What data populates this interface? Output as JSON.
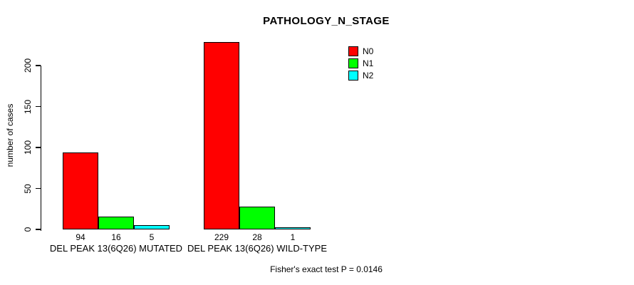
{
  "chart_data": {
    "type": "bar",
    "title": "PATHOLOGY_N_STAGE",
    "xlabel": "",
    "ylabel": "number of cases",
    "yticks": [
      0,
      50,
      100,
      150,
      200
    ],
    "ylim": [
      0,
      232
    ],
    "grid": false,
    "legend_position": "top-right",
    "categories": [
      "DEL PEAK 13(6Q26) MUTATED",
      "DEL PEAK 13(6Q26) WILD-TYPE"
    ],
    "series": [
      {
        "name": "N0",
        "color": "#ff0000",
        "values": [
          94,
          229
        ]
      },
      {
        "name": "N1",
        "color": "#00ff00",
        "values": [
          16,
          28
        ]
      },
      {
        "name": "N2",
        "color": "#00ffff",
        "values": [
          5,
          1
        ]
      }
    ],
    "bar_value_labels": [
      [
        94,
        16,
        5
      ],
      [
        229,
        28,
        1
      ]
    ],
    "annotation": "Fisher's exact test P = 0.0146"
  },
  "colors": {
    "axis": "#000000",
    "bar_border": "#000000",
    "background": "#ffffff"
  }
}
